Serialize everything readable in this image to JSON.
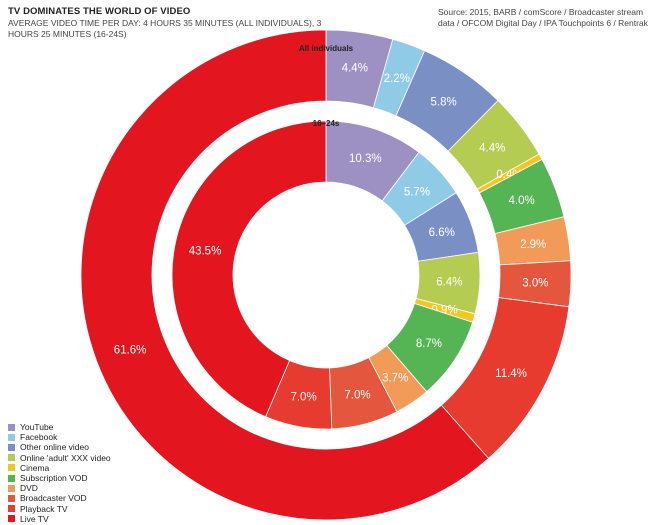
{
  "title": "TV DOMINATES THE WORLD OF VIDEO",
  "subtitle": "AVERAGE VIDEO TIME PER DAY: 4 HOURS 35 MINUTES (ALL INDIVIDUALS), 3 HOURS 25 MINUTES (16-24S)",
  "source": "Source: 2015, BARB / comScore / Broadcaster stream data / OFCOM Digital Day / IPA Touchpoints 6 / Rentrak",
  "chart_data": {
    "type": "pie",
    "subtype": "nested-donut",
    "categories": [
      "YouTube",
      "Facebook",
      "Other online video",
      "Online 'adult' XXX video",
      "Cinema",
      "Subscription VOD",
      "DVD",
      "Broadcaster VOD",
      "Playback TV",
      "Live TV"
    ],
    "colors": [
      "#9d90c2",
      "#8fcbe6",
      "#7a8fc4",
      "#b4cc52",
      "#f2c623",
      "#55b453",
      "#f29a58",
      "#e4573e",
      "#e63b2e",
      "#e3161f"
    ],
    "series": [
      {
        "name": "All individuals",
        "ring": "outer",
        "values": [
          4.4,
          2.2,
          5.8,
          4.4,
          0.4,
          4.0,
          2.9,
          3.0,
          11.4,
          61.6
        ],
        "labels": [
          "4.4%",
          "2.2%",
          "5.8%",
          "4.4%",
          "0.4%",
          "4.0%",
          "2.9%",
          "3.0%",
          "11.4%",
          "61.6%"
        ]
      },
      {
        "name": "16–24s",
        "ring": "inner",
        "values": [
          10.3,
          5.7,
          6.6,
          6.4,
          0.9,
          8.7,
          3.7,
          7.0,
          7.0,
          43.5
        ],
        "labels": [
          "10.3%",
          "5.7%",
          "6.6%",
          "6.4%",
          "0.9%",
          "8.7%",
          "3.7%",
          "7.0%",
          "7.0%",
          "43.5%"
        ]
      }
    ],
    "legend_position": "bottom-left"
  }
}
